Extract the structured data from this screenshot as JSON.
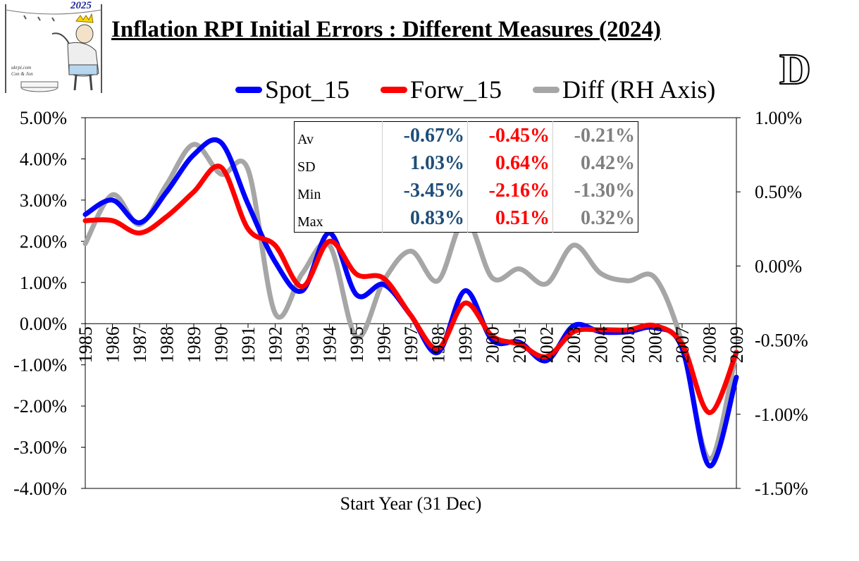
{
  "title": "Inflation RPI Initial Errors : Different Measures (2024)",
  "panel_letter": "D",
  "logo": {
    "year": "2025",
    "site": "ukrpi.com",
    "authors": "Con & Jon"
  },
  "legend": [
    {
      "label": "Spot_15",
      "color": "#0000ff"
    },
    {
      "label": "Forw_15",
      "color": "#ff0000"
    },
    {
      "label": "Diff (RH Axis)",
      "color": "#a6a6a6"
    }
  ],
  "stats": {
    "rows": [
      {
        "label": "Av",
        "spot": "-0.67%",
        "forw": "-0.45%",
        "diff": "-0.21%"
      },
      {
        "label": "SD",
        "spot": "1.03%",
        "forw": "0.64%",
        "diff": "0.42%"
      },
      {
        "label": "Min",
        "spot": "-3.45%",
        "forw": "-2.16%",
        "diff": "-1.30%"
      },
      {
        "label": "Max",
        "spot": "0.83%",
        "forw": "0.51%",
        "diff": "0.32%"
      }
    ]
  },
  "chart_data": {
    "type": "line",
    "title": "Inflation RPI Initial Errors : Different Measures (2024)",
    "xlabel": "Start Year (31 Dec)",
    "x": [
      1985,
      1986,
      1987,
      1988,
      1989,
      1990,
      1991,
      1992,
      1993,
      1994,
      1995,
      1996,
      1997,
      1998,
      1999,
      2000,
      2001,
      2002,
      2003,
      2004,
      2005,
      2006,
      2007,
      2008,
      2009
    ],
    "x_tick_labels": [
      "1985",
      "1986",
      "1987",
      "1988",
      "1989",
      "1990",
      "1991",
      "1992",
      "1993",
      "1994",
      "1995",
      "1996",
      "1997",
      "1998",
      "1999",
      "2000",
      "2001",
      "2002",
      "2003",
      "2004",
      "2005",
      "2006",
      "2007",
      "2008",
      "2009"
    ],
    "y_left": {
      "range": [
        -0.04,
        0.05
      ],
      "ticks": [
        -0.04,
        -0.03,
        -0.02,
        -0.01,
        0.0,
        0.01,
        0.02,
        0.03,
        0.04,
        0.05
      ],
      "tick_labels": [
        "-4.00%",
        "-3.00%",
        "-2.00%",
        "-1.00%",
        "0.00%",
        "1.00%",
        "2.00%",
        "3.00%",
        "4.00%",
        "5.00%"
      ]
    },
    "y_right": {
      "range": [
        -0.015,
        0.01
      ],
      "ticks": [
        -0.015,
        -0.01,
        -0.005,
        0.0,
        0.005,
        0.01
      ],
      "tick_labels": [
        "-1.50%",
        "-1.00%",
        "-0.50%",
        "0.00%",
        "0.50%",
        "1.00%"
      ]
    },
    "grid": false,
    "legend_position": "top",
    "series": [
      {
        "name": "Spot_15",
        "axis": "left",
        "color": "#0000ff",
        "values": [
          0.0265,
          0.03,
          0.0245,
          0.032,
          0.041,
          0.044,
          0.029,
          0.015,
          0.008,
          0.022,
          0.007,
          0.0095,
          0.002,
          -0.007,
          0.008,
          -0.004,
          -0.0045,
          -0.009,
          -0.0005,
          -0.002,
          -0.002,
          -0.001,
          -0.006,
          -0.0345,
          -0.013
        ]
      },
      {
        "name": "Forw_15",
        "axis": "left",
        "color": "#ff0000",
        "values": [
          0.025,
          0.025,
          0.022,
          0.026,
          0.032,
          0.038,
          0.023,
          0.019,
          0.009,
          0.02,
          0.012,
          0.011,
          0.002,
          -0.006,
          0.005,
          -0.003,
          -0.005,
          -0.008,
          -0.002,
          -0.0015,
          -0.0015,
          -0.0005,
          -0.005,
          -0.0216,
          -0.007
        ]
      },
      {
        "name": "Diff (RH Axis)",
        "axis": "right",
        "color": "#a6a6a6",
        "values": [
          0.0015,
          0.0048,
          0.0028,
          0.0055,
          0.0082,
          0.0062,
          0.0065,
          -0.0032,
          -0.0005,
          0.0014,
          -0.0048,
          -0.001,
          0.001,
          -0.001,
          0.0032,
          -0.0008,
          -0.0002,
          -0.0012,
          0.0014,
          -0.0005,
          -0.001,
          -0.0008,
          -0.0052,
          -0.013,
          -0.0058
        ]
      }
    ]
  }
}
